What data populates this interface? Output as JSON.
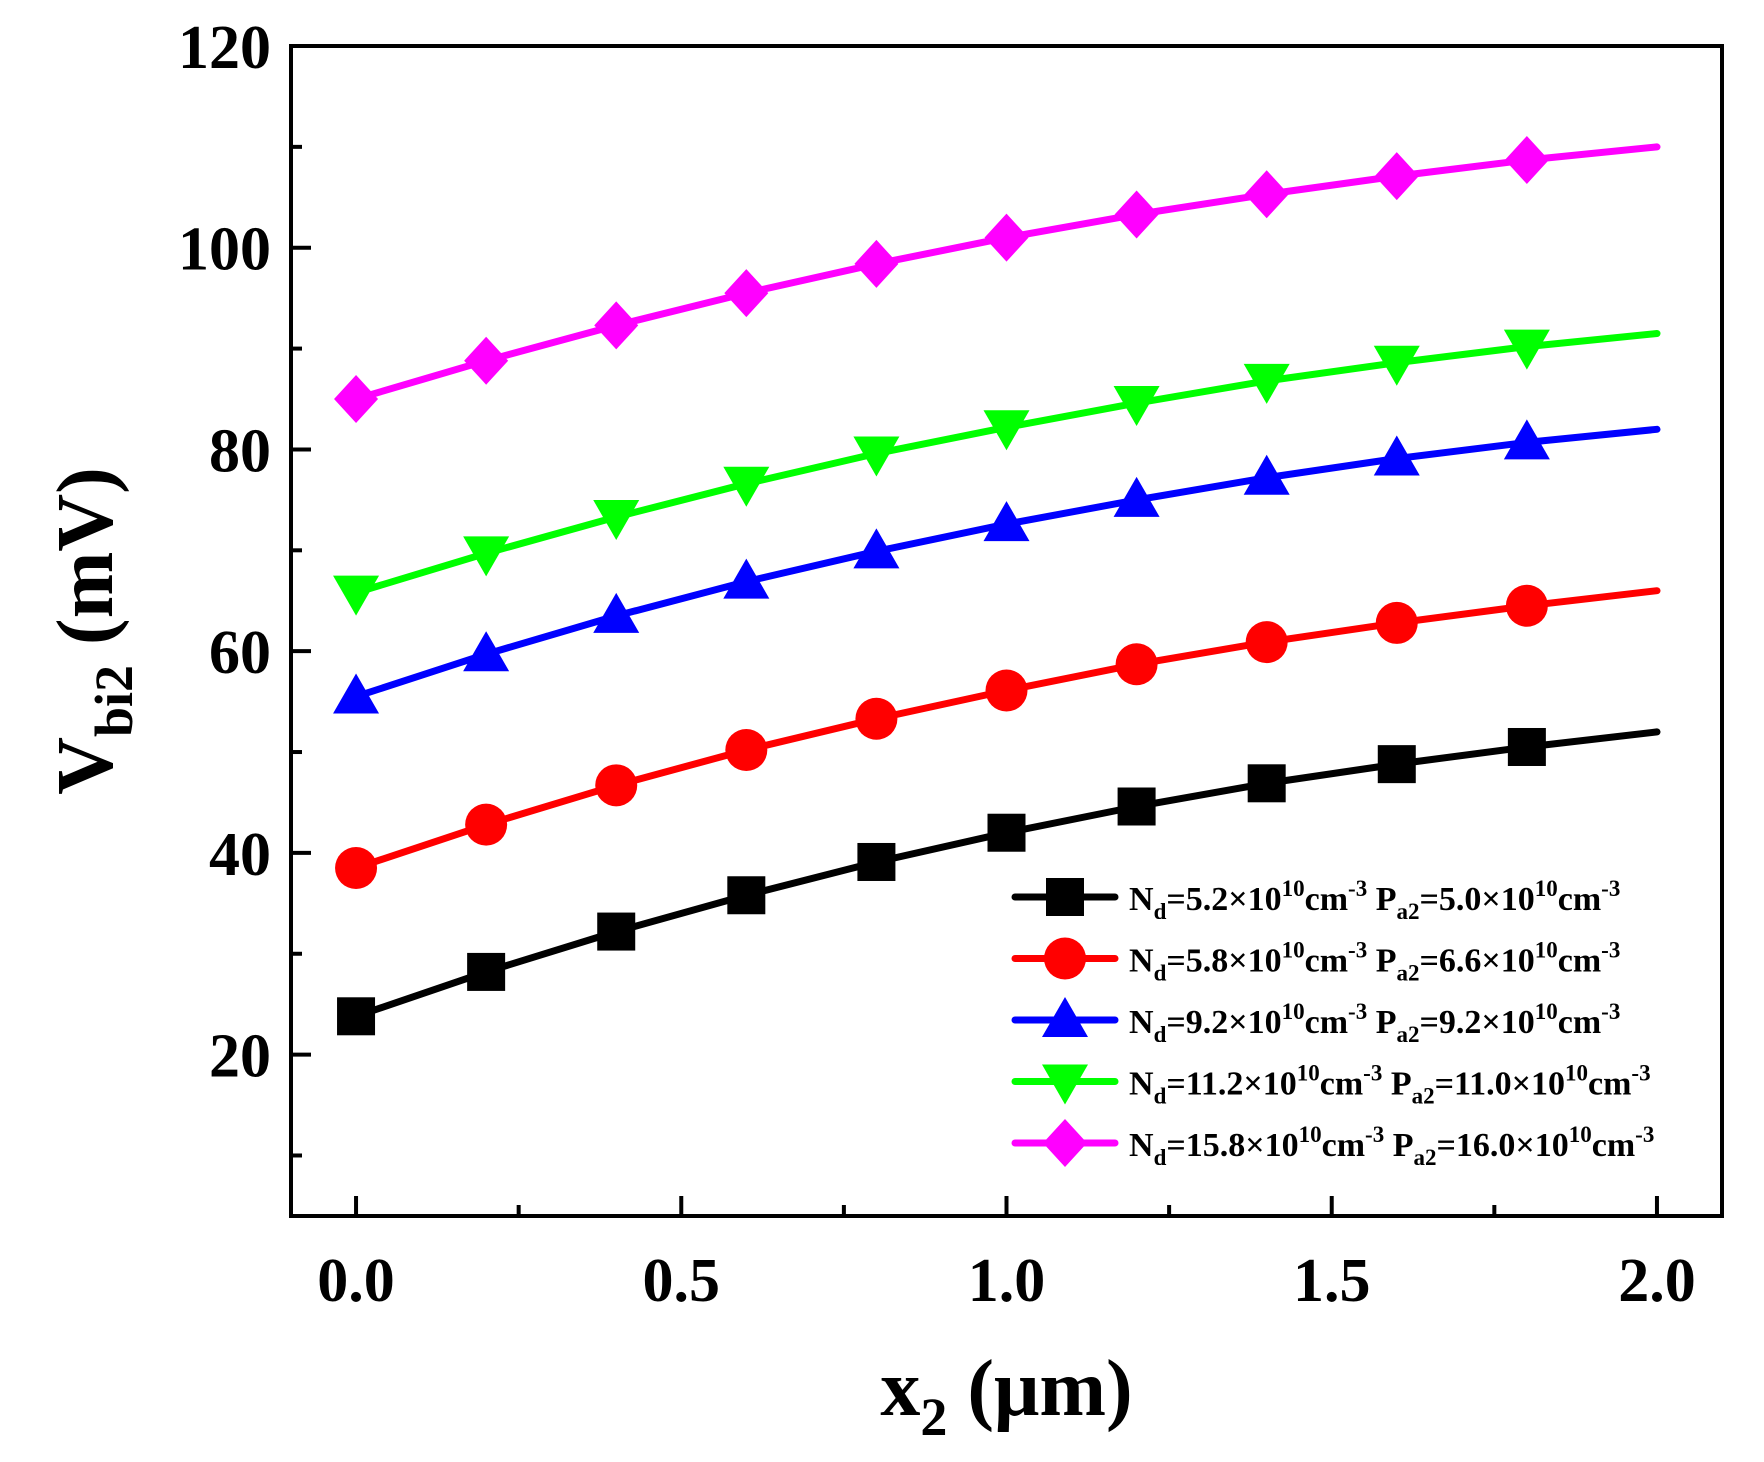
{
  "chart_data": {
    "type": "line",
    "title": "",
    "xlabel": {
      "main": "x",
      "sub": "2",
      "unit": " (μm)"
    },
    "ylabel": {
      "main": "V",
      "sub": "bi2",
      "unit": " (mV)"
    },
    "xlim": [
      -0.1,
      2.1
    ],
    "ylim": [
      4,
      120
    ],
    "x_ticks": [
      0.0,
      0.5,
      1.0,
      1.5,
      2.0
    ],
    "x_tick_labels": [
      "0.0",
      "0.5",
      "1.0",
      "1.5",
      "2.0"
    ],
    "x_minor_ticks": [
      0.25,
      0.75,
      1.25,
      1.75
    ],
    "y_ticks": [
      20,
      40,
      60,
      80,
      100,
      120
    ],
    "y_tick_labels": [
      "20",
      "40",
      "60",
      "80",
      "100",
      "120"
    ],
    "y_minor_ticks": [
      10,
      30,
      50,
      70,
      90,
      110
    ],
    "grid": false,
    "legend_position": "bottom-right",
    "x": [
      0.0,
      0.2,
      0.4,
      0.6,
      0.8,
      1.0,
      1.2,
      1.4,
      1.6,
      1.8,
      2.0
    ],
    "marker_x": [
      0.0,
      0.2,
      0.4,
      0.6,
      0.8,
      1.0,
      1.2,
      1.4,
      1.6,
      1.8
    ],
    "series": [
      {
        "name": "Nd=5.2×10^10cm^-3 Pa2=5.0×10^10cm^-3",
        "legend_parts": [
          [
            "N",
            ""
          ],
          [
            "d",
            "sub"
          ],
          [
            "=5.2×10",
            ""
          ],
          [
            "10",
            "sup"
          ],
          [
            "cm",
            ""
          ],
          [
            "-3",
            "sup"
          ],
          [
            " P",
            ""
          ],
          [
            "a2",
            "sub"
          ],
          [
            "=5.0×10",
            ""
          ],
          [
            "10",
            "sup"
          ],
          [
            "cm",
            ""
          ],
          [
            "-3",
            "sup"
          ]
        ],
        "color": "#000000",
        "marker": "square",
        "values": [
          23.8,
          28.2,
          32.2,
          35.8,
          39.1,
          42.0,
          44.6,
          46.9,
          48.8,
          50.5,
          52.0
        ]
      },
      {
        "name": "Nd=5.8×10^10cm^-3 Pa2=6.6×10^10cm^-3",
        "legend_parts": [
          [
            "N",
            ""
          ],
          [
            "d",
            "sub"
          ],
          [
            "=5.8×10",
            ""
          ],
          [
            "10",
            "sup"
          ],
          [
            "cm",
            ""
          ],
          [
            "-3",
            "sup"
          ],
          [
            " P",
            ""
          ],
          [
            "a2",
            "sub"
          ],
          [
            "=6.6×10",
            ""
          ],
          [
            "10",
            "sup"
          ],
          [
            "cm",
            ""
          ],
          [
            "-3",
            "sup"
          ]
        ],
        "color": "#ff0000",
        "marker": "circle",
        "values": [
          38.5,
          42.8,
          46.7,
          50.2,
          53.3,
          56.1,
          58.7,
          60.9,
          62.8,
          64.5,
          66.0
        ]
      },
      {
        "name": "Nd=9.2×10^10cm^-3 Pa2=9.2×10^10cm^-3",
        "legend_parts": [
          [
            "N",
            ""
          ],
          [
            "d",
            "sub"
          ],
          [
            "=9.2×10",
            ""
          ],
          [
            "10",
            "sup"
          ],
          [
            "cm",
            ""
          ],
          [
            "-3",
            "sup"
          ],
          [
            " P",
            ""
          ],
          [
            "a2",
            "sub"
          ],
          [
            "=9.2×10",
            ""
          ],
          [
            "10",
            "sup"
          ],
          [
            "cm",
            ""
          ],
          [
            "-3",
            "sup"
          ]
        ],
        "color": "#0000ff",
        "marker": "triangle-up",
        "values": [
          55.5,
          59.7,
          63.5,
          66.9,
          69.9,
          72.6,
          75.0,
          77.2,
          79.1,
          80.7,
          82.0
        ]
      },
      {
        "name": "Nd=11.2×10^10cm^-3 Pa2=11.0×10^10cm^-3",
        "legend_parts": [
          [
            "N",
            ""
          ],
          [
            "d",
            "sub"
          ],
          [
            "=11.2×10",
            ""
          ],
          [
            "10",
            "sup"
          ],
          [
            "cm",
            ""
          ],
          [
            "-3",
            "sup"
          ],
          [
            " P",
            ""
          ],
          [
            "a2",
            "sub"
          ],
          [
            "=11.0×10",
            ""
          ],
          [
            "10",
            "sup"
          ],
          [
            "cm",
            ""
          ],
          [
            "-3",
            "sup"
          ]
        ],
        "color": "#00ff00",
        "marker": "triangle-down",
        "values": [
          65.8,
          69.7,
          73.3,
          76.6,
          79.6,
          82.2,
          84.6,
          86.8,
          88.6,
          90.2,
          91.5
        ]
      },
      {
        "name": "Nd=15.8×10^10cm^-3 Pa2=16.0×10^10cm^-3",
        "legend_parts": [
          [
            "N",
            ""
          ],
          [
            "d",
            "sub"
          ],
          [
            "=15.8×10",
            ""
          ],
          [
            "10",
            "sup"
          ],
          [
            "cm",
            ""
          ],
          [
            "-3",
            "sup"
          ],
          [
            " P",
            ""
          ],
          [
            "a2",
            "sub"
          ],
          [
            "=16.0×10",
            ""
          ],
          [
            "10",
            "sup"
          ],
          [
            "cm",
            ""
          ],
          [
            "-3",
            "sup"
          ]
        ],
        "color": "#ff00ff",
        "marker": "diamond",
        "values": [
          85.0,
          88.8,
          92.3,
          95.5,
          98.4,
          101.0,
          103.3,
          105.3,
          107.1,
          108.7,
          110.0
        ]
      }
    ]
  }
}
